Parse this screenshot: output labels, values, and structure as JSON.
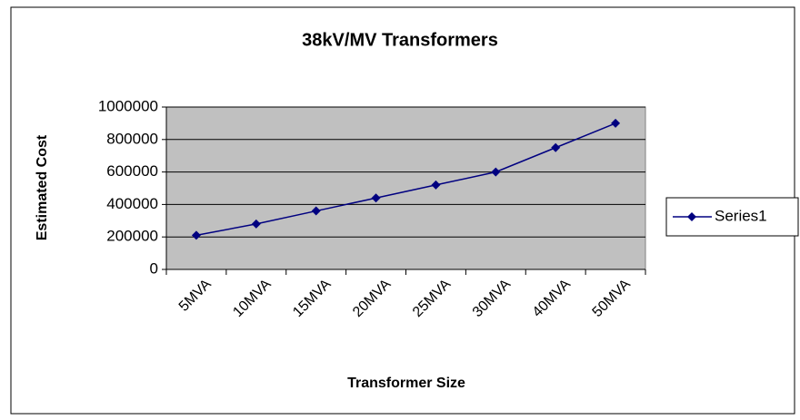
{
  "chart_data": {
    "type": "line",
    "title": "38kV/MV Transformers",
    "x_label": "Transformer Size",
    "y_label": "Estimated Cost",
    "categories": [
      "5MVA",
      "10MVA",
      "15MVA",
      "20MVA",
      "25MVA",
      "30MVA",
      "40MVA",
      "50MVA"
    ],
    "series": [
      {
        "name": "Series1",
        "color": "#000080",
        "values": [
          210000,
          280000,
          360000,
          440000,
          520000,
          600000,
          750000,
          900000
        ]
      }
    ],
    "ylim": [
      0,
      1000000
    ],
    "yticks": [
      0,
      200000,
      400000,
      600000,
      800000,
      1000000
    ],
    "grid": true,
    "legend": "right",
    "plot_background": "#c0c0c0"
  }
}
